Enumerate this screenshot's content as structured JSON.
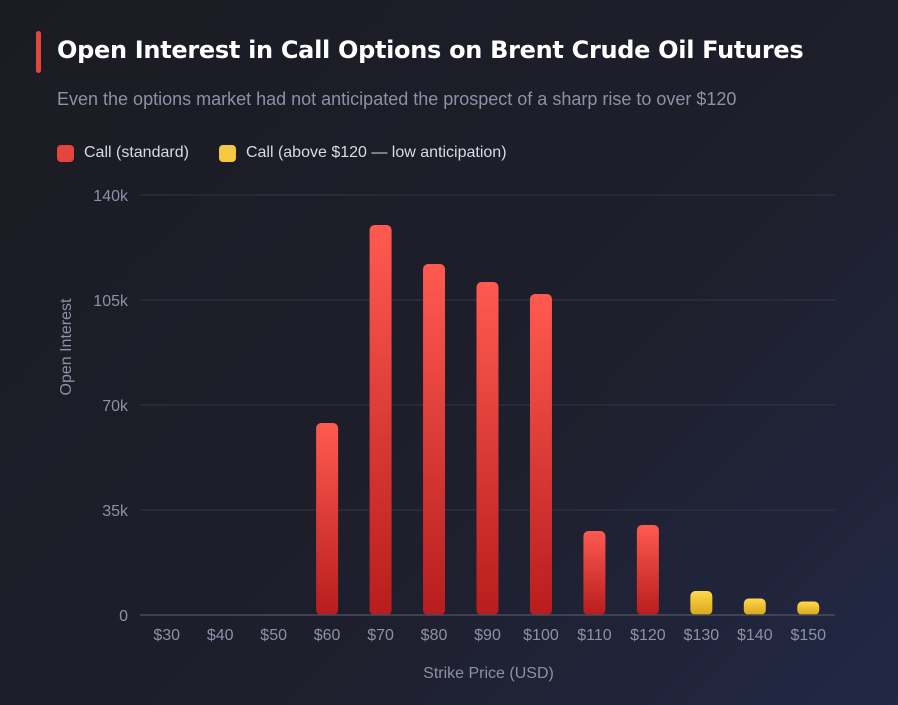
{
  "title": "Open Interest in Call Options on Brent Crude Oil Futures",
  "subtitle": "Even the options market had not anticipated the prospect of a sharp rise to over $120",
  "colors": {
    "accent": "#e5453b",
    "standard": "#e5453b",
    "above120": "#f5c842"
  },
  "legend": [
    {
      "label": "Call (standard)",
      "color": "#e5453b"
    },
    {
      "label": "Call (above $120 — low anticipation)",
      "color": "#f5c842"
    }
  ],
  "chart_data": {
    "type": "bar",
    "title": "Open Interest in Call Options on Brent Crude Oil Futures",
    "xlabel": "Strike Price (USD)",
    "ylabel": "Open Interest",
    "ylim": [
      0,
      140000
    ],
    "yticks": [
      {
        "value": 0,
        "label": "0"
      },
      {
        "value": 35000,
        "label": "35k"
      },
      {
        "value": 70000,
        "label": "70k"
      },
      {
        "value": 105000,
        "label": "105k"
      },
      {
        "value": 140000,
        "label": "140k"
      }
    ],
    "grid": true,
    "legend_position": "top-left",
    "categories": [
      "$30",
      "$40",
      "$50",
      "$60",
      "$70",
      "$80",
      "$90",
      "$100",
      "$110",
      "$120",
      "$130",
      "$140",
      "$150"
    ],
    "series": [
      {
        "name": "Call (standard)",
        "values": [
          0,
          0,
          0,
          64000,
          130000,
          117000,
          111000,
          107000,
          28000,
          30000,
          null,
          null,
          null
        ]
      },
      {
        "name": "Call (above $120 — low anticipation)",
        "values": [
          null,
          null,
          null,
          null,
          null,
          null,
          null,
          null,
          null,
          null,
          8000,
          5500,
          4500
        ]
      }
    ]
  }
}
